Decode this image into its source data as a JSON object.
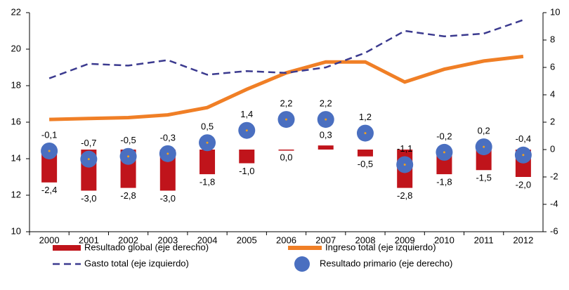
{
  "chart_data": {
    "type": "combo",
    "categories": [
      "2000",
      "2001",
      "2002",
      "2003",
      "2004",
      "2005",
      "2006",
      "2007",
      "2008",
      "2009",
      "2010",
      "2011",
      "2012"
    ],
    "ylim": [
      10,
      22
    ],
    "yticks": [
      10,
      12,
      14,
      16,
      18,
      20,
      22
    ],
    "y2lim": [
      -6,
      10
    ],
    "y2ticks": [
      -6,
      -4,
      -2,
      0,
      2,
      4,
      6,
      8,
      10
    ],
    "series": [
      {
        "name": "Resultado global (eje derecho)",
        "type": "bar",
        "axis": "y2",
        "color": "#c0141b",
        "values": [
          -2.4,
          -3.0,
          -2.8,
          -3.0,
          -1.8,
          -1.0,
          0.0,
          0.3,
          -0.5,
          -2.8,
          -1.8,
          -1.5,
          -2.0
        ],
        "value_labels": [
          "-2,4",
          "-3,0",
          "-2,8",
          "-3,0",
          "-1,8",
          "-1,0",
          "0,0",
          "0,3",
          "-0,5",
          "-2,8",
          "-1,8",
          "-1,5",
          "-2,0"
        ]
      },
      {
        "name": "Ingreso total (eje izquierdo)",
        "type": "line",
        "color": "#f07f26",
        "values": [
          16.15,
          16.2,
          16.25,
          16.4,
          16.8,
          17.8,
          18.7,
          19.3,
          19.3,
          18.2,
          18.9,
          19.35,
          19.6
        ]
      },
      {
        "name": "Gasto total (eje izquierdo)",
        "type": "line",
        "line_style": "dashed",
        "color": "#3b3a8f",
        "values": [
          18.4,
          19.2,
          19.1,
          19.4,
          18.6,
          18.8,
          18.7,
          19.0,
          19.8,
          21.0,
          20.7,
          20.85,
          21.6
        ]
      },
      {
        "name": "Resultado primario (eje derecho)",
        "type": "scatter",
        "axis": "y2",
        "color": "#4a6fc0",
        "values": [
          -0.1,
          -0.7,
          -0.5,
          -0.3,
          0.5,
          1.4,
          2.2,
          2.2,
          1.2,
          -1.1,
          -0.2,
          0.2,
          -0.4
        ],
        "value_labels": [
          "-0,1",
          "-0,7",
          "-0,5",
          "-0,3",
          "0,5",
          "1,4",
          "2,2",
          "2,2",
          "1,2",
          "-1,1",
          "-0,2",
          "0,2",
          "-0,4"
        ]
      }
    ]
  }
}
